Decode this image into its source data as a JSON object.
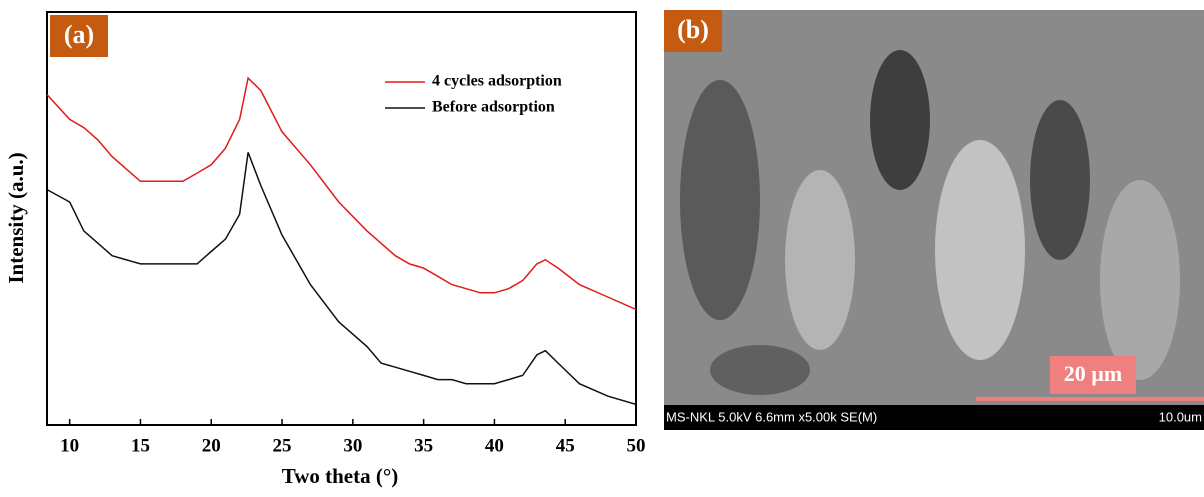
{
  "chart_data": {
    "type": "line",
    "panel_label": "(a)",
    "x_label": "Two theta (°)",
    "y_label": "Intensity (a.u.)",
    "xlim": [
      8.4,
      50
    ],
    "xticks": [
      10,
      15,
      20,
      25,
      30,
      35,
      40,
      45,
      50
    ],
    "ylim": [
      0,
      100
    ],
    "legend": "upper right",
    "x": [
      8.4,
      10,
      11,
      12,
      13,
      15,
      17,
      18,
      19,
      20,
      21,
      22,
      22.6,
      23.5,
      25,
      27,
      29,
      31,
      32,
      33,
      34,
      35,
      36,
      37,
      38,
      39,
      40,
      41,
      42,
      43,
      43.6,
      44.5,
      46,
      48,
      50
    ],
    "series": [
      {
        "name": "4 cycles adsorption",
        "color": "#e31a1a",
        "values": [
          80,
          74,
          72,
          69,
          65,
          59,
          59,
          59,
          61,
          63,
          67,
          74,
          84,
          81,
          71,
          63,
          54,
          47,
          44,
          41,
          39,
          38,
          36,
          34,
          33,
          32,
          32,
          33,
          35,
          39,
          40,
          38,
          34,
          31,
          28
        ]
      },
      {
        "name": "Before adsorption",
        "color": "#111111",
        "values": [
          57,
          54,
          47,
          44,
          41,
          39,
          39,
          39,
          39,
          42,
          45,
          51,
          66,
          58,
          46,
          34,
          25,
          19,
          15,
          14,
          13,
          12,
          11,
          11,
          10,
          10,
          10,
          11,
          12,
          17,
          18,
          15,
          10,
          7,
          5
        ]
      }
    ]
  },
  "panel_b": {
    "label": "(b)",
    "scale_bar": "20 µm",
    "info": "MS-NKL 5.0kV 6.6mm x5.00k SE(M)",
    "scale": "10.0um"
  }
}
